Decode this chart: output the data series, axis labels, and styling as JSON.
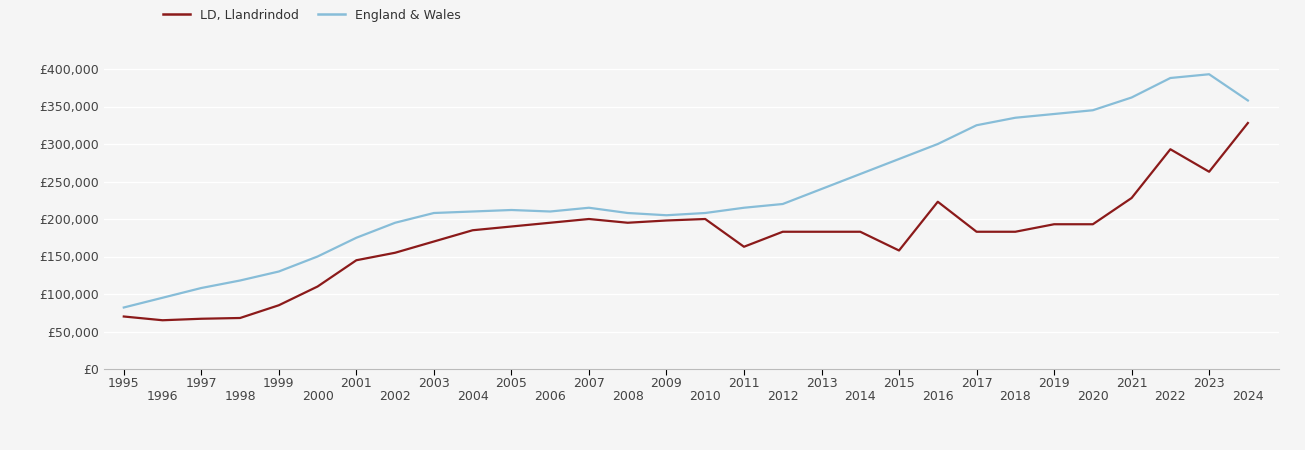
{
  "legend_labels": [
    "LD, Llandrindod",
    "England & Wales"
  ],
  "line_colors": [
    "#8b1a1a",
    "#87bdd8"
  ],
  "background_color": "#f5f5f5",
  "ylim": [
    0,
    420000
  ],
  "yticks": [
    0,
    50000,
    100000,
    150000,
    200000,
    250000,
    300000,
    350000,
    400000
  ],
  "xlim_start": 1994.5,
  "xlim_end": 2024.8,
  "xticks_odd": [
    1995,
    1997,
    1999,
    2001,
    2003,
    2005,
    2007,
    2009,
    2011,
    2013,
    2015,
    2017,
    2019,
    2021,
    2023
  ],
  "xticks_even": [
    1996,
    1998,
    2000,
    2002,
    2004,
    2006,
    2008,
    2010,
    2012,
    2014,
    2016,
    2018,
    2020,
    2022,
    2024
  ],
  "LD_years": [
    1995,
    1996,
    1997,
    1998,
    1999,
    2000,
    2001,
    2002,
    2003,
    2004,
    2005,
    2006,
    2007,
    2008,
    2009,
    2010,
    2011,
    2012,
    2013,
    2014,
    2015,
    2016,
    2017,
    2018,
    2019,
    2020,
    2021,
    2022,
    2023,
    2024
  ],
  "LD_values": [
    70000,
    65000,
    67000,
    68000,
    85000,
    110000,
    145000,
    155000,
    170000,
    185000,
    190000,
    195000,
    200000,
    195000,
    198000,
    200000,
    163000,
    183000,
    183000,
    183000,
    158000,
    223000,
    183000,
    183000,
    193000,
    193000,
    228000,
    293000,
    263000,
    328000
  ],
  "EW_years": [
    1995,
    1996,
    1997,
    1998,
    1999,
    2000,
    2001,
    2002,
    2003,
    2004,
    2005,
    2006,
    2007,
    2008,
    2009,
    2010,
    2011,
    2012,
    2013,
    2014,
    2015,
    2016,
    2017,
    2018,
    2019,
    2020,
    2021,
    2022,
    2023,
    2024
  ],
  "EW_values": [
    82000,
    95000,
    108000,
    118000,
    130000,
    150000,
    175000,
    195000,
    208000,
    210000,
    212000,
    210000,
    215000,
    208000,
    205000,
    208000,
    215000,
    220000,
    240000,
    260000,
    280000,
    300000,
    325000,
    335000,
    340000,
    345000,
    362000,
    388000,
    393000,
    358000
  ]
}
